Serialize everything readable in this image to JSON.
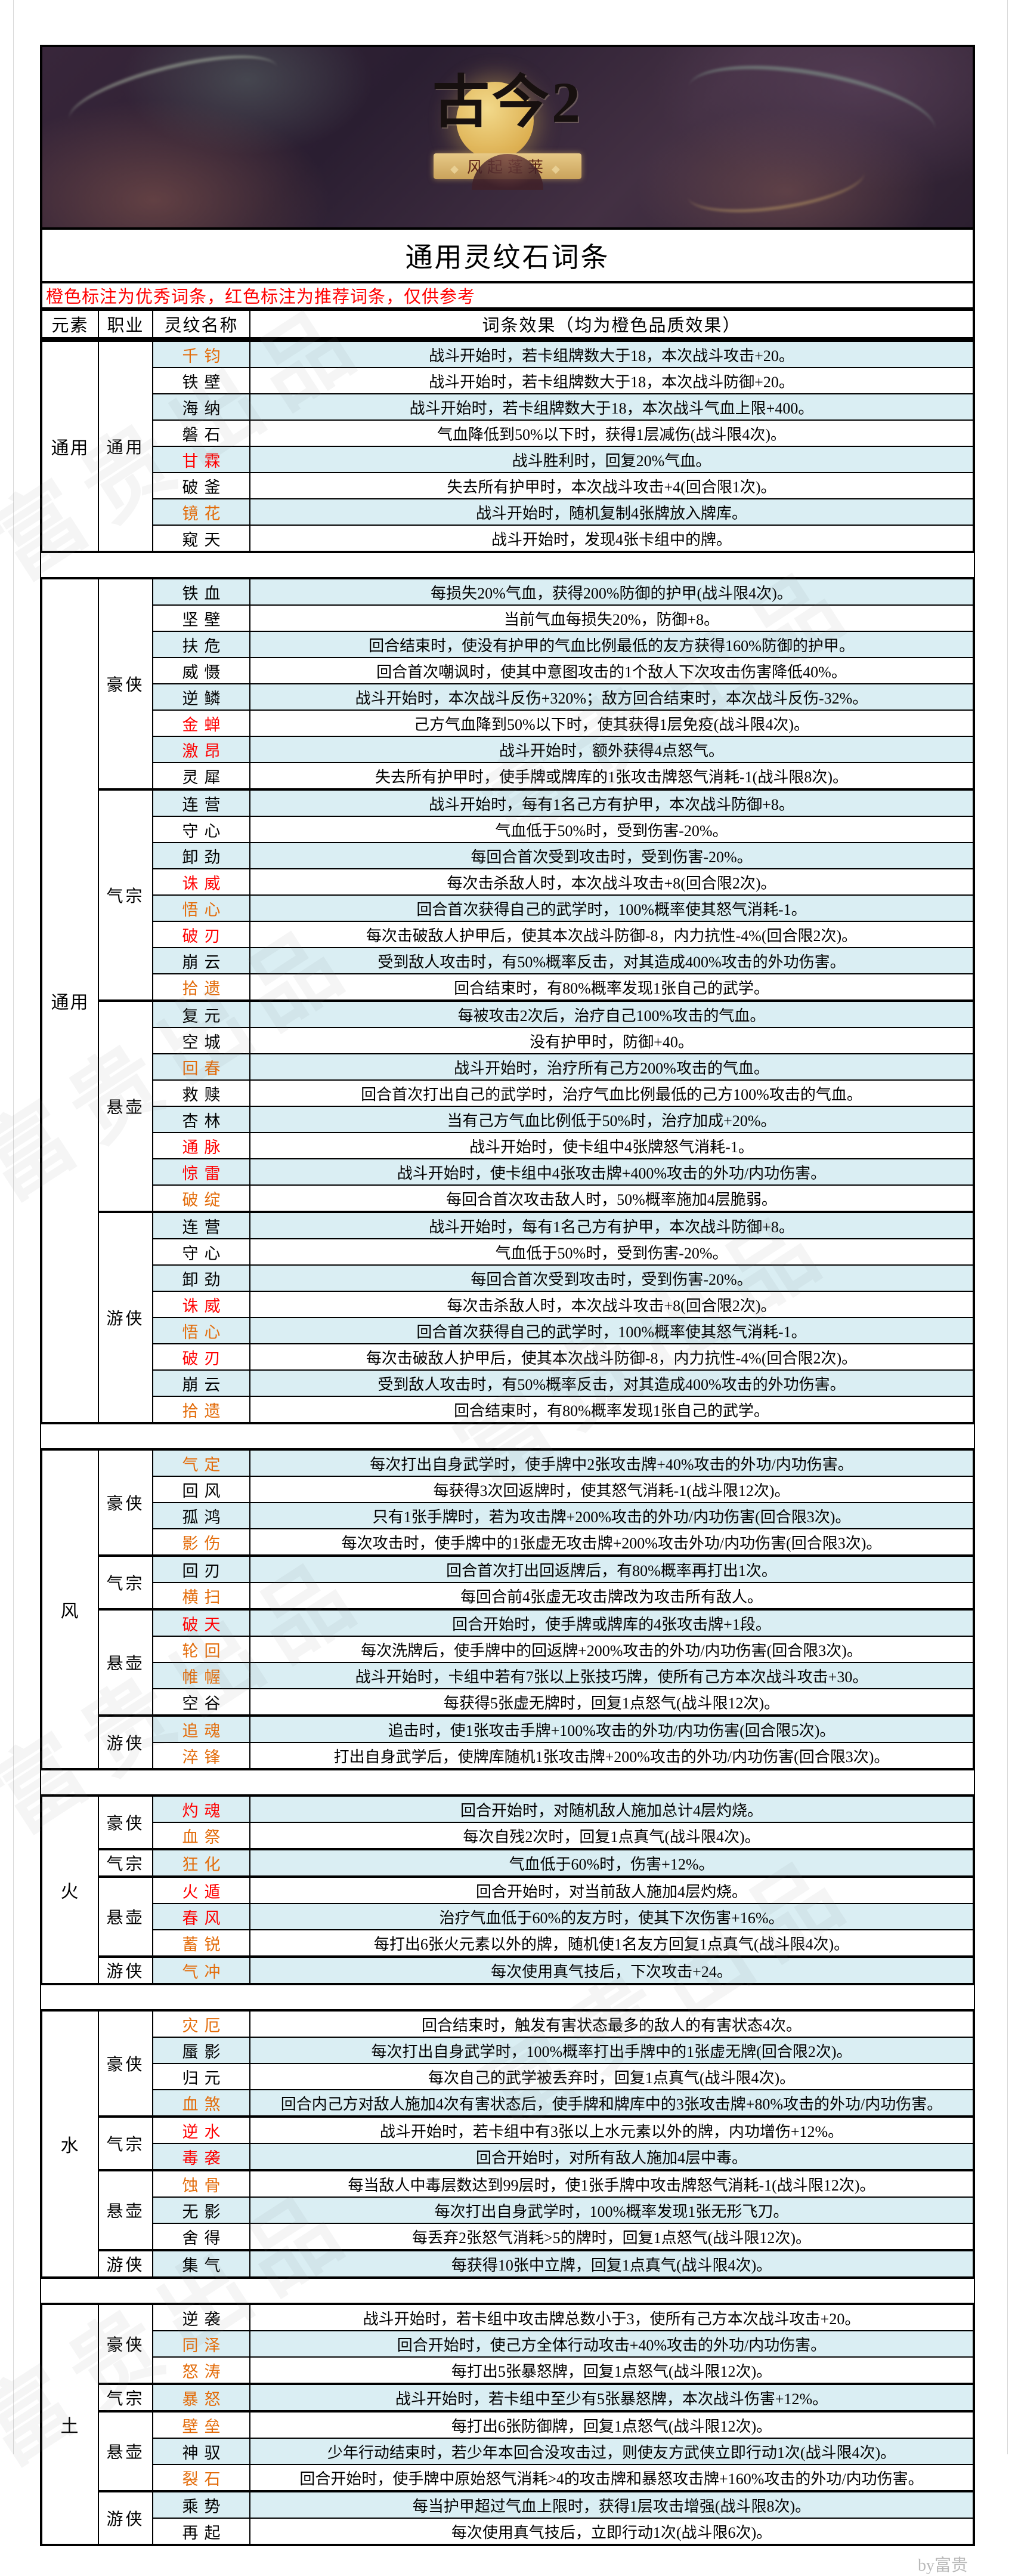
{
  "banner": {
    "logo_main": "古今2",
    "logo_sub": "风起蓬莱"
  },
  "title": "通用灵纹石词条",
  "note": "橙色标注为优秀词条，红色标注为推荐词条，仅供参考",
  "columns": [
    "元素",
    "职业",
    "灵纹名称",
    "词条效果（均为橙色品质效果）"
  ],
  "footer": "by富贵",
  "watermark_text": "富贵出品",
  "colors": {
    "orange": "#E36C0A",
    "red": "#FF0000",
    "row_blue": "#DAEEF3",
    "note_bg": "#FBE5C0"
  },
  "sections": [
    {
      "element": "通用",
      "first_shade": "blue",
      "groups": [
        {
          "cls": "通用",
          "rows": [
            {
              "name": "千钧",
              "color": "orange",
              "effect": "战斗开始时，若卡组牌数大于18，本次战斗攻击+20。"
            },
            {
              "name": "铁壁",
              "color": "black",
              "effect": "战斗开始时，若卡组牌数大于18，本次战斗防御+20。"
            },
            {
              "name": "海纳",
              "color": "black",
              "effect": "战斗开始时，若卡组牌数大于18，本次战斗气血上限+400。"
            },
            {
              "name": "磐石",
              "color": "black",
              "effect": "气血降低到50%以下时，获得1层减伤(战斗限4次)。"
            },
            {
              "name": "甘霖",
              "color": "red",
              "effect": "战斗胜利时，回复20%气血。"
            },
            {
              "name": "破釜",
              "color": "black",
              "effect": "失去所有护甲时，本次战斗攻击+4(回合限1次)。"
            },
            {
              "name": "镜花",
              "color": "orange",
              "effect": "战斗开始时，随机复制4张牌放入牌库。"
            },
            {
              "name": "窥天",
              "color": "black",
              "effect": "战斗开始时，发现4张卡组中的牌。"
            }
          ]
        }
      ]
    },
    {
      "element": "通用",
      "first_shade": "blue",
      "groups": [
        {
          "cls": "豪侠",
          "rows": [
            {
              "name": "铁血",
              "color": "black",
              "effect": "每损失20%气血，获得200%防御的护甲(战斗限4次)。"
            },
            {
              "name": "坚壁",
              "color": "black",
              "effect": "当前气血每损失20%，防御+8。"
            },
            {
              "name": "扶危",
              "color": "black",
              "effect": "回合结束时，使没有护甲的气血比例最低的友方获得160%防御的护甲。"
            },
            {
              "name": "威慑",
              "color": "black",
              "effect": "回合首次嘲讽时，使其中意图攻击的1个敌人下次攻击伤害降低40%。"
            },
            {
              "name": "逆鳞",
              "color": "black",
              "effect": "战斗开始时，本次战斗反伤+320%；敌方回合结束时，本次战斗反伤-32%。"
            },
            {
              "name": "金蝉",
              "color": "red",
              "effect": "己方气血降到50%以下时，使其获得1层免疫(战斗限4次)。"
            },
            {
              "name": "激昂",
              "color": "red",
              "effect": "战斗开始时，额外获得4点怒气。"
            },
            {
              "name": "灵犀",
              "color": "black",
              "effect": "失去所有护甲时，使手牌或牌库的1张攻击牌怒气消耗-1(战斗限8次)。"
            }
          ]
        },
        {
          "cls": "气宗",
          "rows": [
            {
              "name": "连营",
              "color": "black",
              "effect": "战斗开始时，每有1名己方有护甲，本次战斗防御+8。"
            },
            {
              "name": "守心",
              "color": "black",
              "effect": "气血低于50%时，受到伤害-20%。"
            },
            {
              "name": "卸劲",
              "color": "black",
              "effect": "每回合首次受到攻击时，受到伤害-20%。"
            },
            {
              "name": "诛威",
              "color": "red",
              "effect": "每次击杀敌人时，本次战斗攻击+8(回合限2次)。"
            },
            {
              "name": "悟心",
              "color": "orange",
              "effect": "回合首次获得自己的武学时，100%概率使其怒气消耗-1。"
            },
            {
              "name": "破刃",
              "color": "red",
              "effect": "每次击破敌人护甲后，使其本次战斗防御-8，内力抗性-4%(回合限2次)。"
            },
            {
              "name": "崩云",
              "color": "black",
              "effect": "受到敌人攻击时，有50%概率反击，对其造成400%攻击的外功伤害。"
            },
            {
              "name": "拾遗",
              "color": "orange",
              "effect": "回合结束时，有80%概率发现1张自己的武学。"
            }
          ]
        },
        {
          "cls": "悬壶",
          "rows": [
            {
              "name": "复元",
              "color": "black",
              "effect": "每被攻击2次后，治疗自己100%攻击的气血。"
            },
            {
              "name": "空城",
              "color": "black",
              "effect": "没有护甲时，防御+40。"
            },
            {
              "name": "回春",
              "color": "orange",
              "effect": "战斗开始时，治疗所有己方200%攻击的气血。"
            },
            {
              "name": "救赎",
              "color": "black",
              "effect": "回合首次打出自己的武学时，治疗气血比例最低的己方100%攻击的气血。"
            },
            {
              "name": "杏林",
              "color": "black",
              "effect": "当有己方气血比例低于50%时，治疗加成+20%。"
            },
            {
              "name": "通脉",
              "color": "red",
              "effect": "战斗开始时，使卡组中4张牌怒气消耗-1。"
            },
            {
              "name": "惊雷",
              "color": "red",
              "effect": "战斗开始时，使卡组中4张攻击牌+400%攻击的外功/内功伤害。"
            },
            {
              "name": "破绽",
              "color": "orange",
              "effect": "每回合首次攻击敌人时，50%概率施加4层脆弱。"
            }
          ]
        },
        {
          "cls": "游侠",
          "rows": [
            {
              "name": "连营",
              "color": "black",
              "effect": "战斗开始时，每有1名己方有护甲，本次战斗防御+8。"
            },
            {
              "name": "守心",
              "color": "black",
              "effect": "气血低于50%时，受到伤害-20%。"
            },
            {
              "name": "卸劲",
              "color": "black",
              "effect": "每回合首次受到攻击时，受到伤害-20%。"
            },
            {
              "name": "诛威",
              "color": "red",
              "effect": "每次击杀敌人时，本次战斗攻击+8(回合限2次)。"
            },
            {
              "name": "悟心",
              "color": "orange",
              "effect": "回合首次获得自己的武学时，100%概率使其怒气消耗-1。"
            },
            {
              "name": "破刃",
              "color": "red",
              "effect": "每次击破敌人护甲后，使其本次战斗防御-8，内力抗性-4%(回合限2次)。"
            },
            {
              "name": "崩云",
              "color": "black",
              "effect": "受到敌人攻击时，有50%概率反击，对其造成400%攻击的外功伤害。"
            },
            {
              "name": "拾遗",
              "color": "orange",
              "effect": "回合结束时，有80%概率发现1张自己的武学。"
            }
          ]
        }
      ]
    },
    {
      "element": "风",
      "first_shade": "blue",
      "groups": [
        {
          "cls": "豪侠",
          "rows": [
            {
              "name": "气定",
              "color": "orange",
              "effect": "每次打出自身武学时，使手牌中2张攻击牌+40%攻击的外功/内功伤害。"
            },
            {
              "name": "回风",
              "color": "black",
              "effect": "每获得3次回返牌时，使其怒气消耗-1(战斗限12次)。"
            },
            {
              "name": "孤鸿",
              "color": "black",
              "effect": "只有1张手牌时，若为攻击牌+200%攻击的外功/内功伤害(回合限3次)。"
            },
            {
              "name": "影伤",
              "color": "orange",
              "effect": "每次攻击时，使手牌中的1张虚无攻击牌+200%攻击外功/内功伤害(回合限3次)。"
            }
          ]
        },
        {
          "cls": "气宗",
          "rows": [
            {
              "name": "回刃",
              "color": "black",
              "effect": "回合首次打出回返牌后，有80%概率再打出1次。"
            },
            {
              "name": "横扫",
              "color": "orange",
              "effect": "每回合前4张虚无攻击牌改为攻击所有敌人。"
            }
          ]
        },
        {
          "cls": "悬壶",
          "rows": [
            {
              "name": "破天",
              "color": "red",
              "effect": "回合开始时，使手牌或牌库的4张攻击牌+1段。"
            },
            {
              "name": "轮回",
              "color": "orange",
              "effect": "每次洗牌后，使手牌中的回返牌+200%攻击的外功/内功伤害(回合限3次)。"
            },
            {
              "name": "帷幄",
              "color": "orange",
              "effect": "战斗开始时，卡组中若有7张以上张技巧牌，使所有己方本次战斗攻击+30。"
            },
            {
              "name": "空谷",
              "color": "black",
              "effect": "每获得5张虚无牌时，回复1点怒气(战斗限12次)。"
            }
          ]
        },
        {
          "cls": "游侠",
          "rows": [
            {
              "name": "追魂",
              "color": "orange",
              "effect": "追击时，使1张攻击手牌+100%攻击的外功/内功伤害(回合限5次)。"
            },
            {
              "name": "淬锋",
              "color": "orange",
              "effect": "打出自身武学后，使牌库随机1张攻击牌+200%攻击的外功/内功伤害(回合限3次)。"
            }
          ]
        }
      ]
    },
    {
      "element": "火",
      "first_shade": "blue",
      "groups": [
        {
          "cls": "豪侠",
          "rows": [
            {
              "name": "灼魂",
              "color": "red",
              "effect": "回合开始时，对随机敌人施加总计4层灼烧。"
            },
            {
              "name": "血祭",
              "color": "orange",
              "effect": "每次自残2次时，回复1点真气(战斗限4次)。"
            }
          ]
        },
        {
          "cls": "气宗",
          "rows": [
            {
              "name": "狂化",
              "color": "orange",
              "effect": "气血低于60%时，伤害+12%。"
            }
          ]
        },
        {
          "cls": "悬壶",
          "rows": [
            {
              "name": "火遁",
              "color": "red",
              "effect": "回合开始时，对当前敌人施加4层灼烧。"
            },
            {
              "name": "春风",
              "color": "red",
              "effect": "治疗气血低于60%的友方时，使其下次伤害+16%。"
            },
            {
              "name": "蓄锐",
              "color": "orange",
              "effect": "每打出6张火元素以外的牌，随机使1名友方回复1点真气(战斗限4次)。"
            }
          ]
        },
        {
          "cls": "游侠",
          "rows": [
            {
              "name": "气冲",
              "color": "orange",
              "effect": "每次使用真气技后，下次攻击+24。"
            }
          ]
        }
      ]
    },
    {
      "element": "水",
      "first_shade": "white",
      "groups": [
        {
          "cls": "豪侠",
          "rows": [
            {
              "name": "灾厄",
              "color": "orange",
              "effect": "回合结束时，触发有害状态最多的敌人的有害状态4次。"
            },
            {
              "name": "蜃影",
              "color": "black",
              "effect": "每次打出自身武学时，100%概率打出手牌中的1张虚无牌(回合限2次)。"
            },
            {
              "name": "归元",
              "color": "black",
              "effect": "每次自己的武学被丢弃时，回复1点真气(战斗限4次)。"
            },
            {
              "name": "血煞",
              "color": "orange",
              "effect": "回合内己方对敌人施加4次有害状态后，使手牌和牌库中的3张攻击牌+80%攻击的外功/内功伤害。"
            }
          ]
        },
        {
          "cls": "气宗",
          "rows": [
            {
              "name": "逆水",
              "color": "red",
              "effect": "战斗开始时，若卡组中有3张以上水元素以外的牌，内功增伤+12%。"
            },
            {
              "name": "毒袭",
              "color": "red",
              "effect": "回合开始时，对所有敌人施加4层中毒。"
            }
          ]
        },
        {
          "cls": "悬壶",
          "rows": [
            {
              "name": "蚀骨",
              "color": "orange",
              "effect": "每当敌人中毒层数达到99层时，使1张手牌中攻击牌怒气消耗-1(战斗限12次)。"
            },
            {
              "name": "无影",
              "color": "black",
              "effect": "每次打出自身武学时，100%概率发现1张无形飞刀。"
            },
            {
              "name": "舍得",
              "color": "black",
              "effect": "每丢弃2张怒气消耗>5的牌时，回复1点怒气(战斗限12次)。"
            }
          ]
        },
        {
          "cls": "游侠",
          "rows": [
            {
              "name": "集气",
              "color": "black",
              "effect": "每获得10张中立牌，回复1点真气(战斗限4次)。"
            }
          ]
        }
      ]
    },
    {
      "element": "土",
      "first_shade": "white",
      "groups": [
        {
          "cls": "豪侠",
          "rows": [
            {
              "name": "逆袭",
              "color": "black",
              "effect": "战斗开始时，若卡组中攻击牌总数小于3，使所有己方本次战斗攻击+20。"
            },
            {
              "name": "同泽",
              "color": "orange",
              "effect": "回合开始时，使己方全体行动攻击+40%攻击的外功/内功伤害。"
            },
            {
              "name": "怒涛",
              "color": "orange",
              "effect": "每打出5张暴怒牌，回复1点怒气(战斗限12次)。"
            }
          ]
        },
        {
          "cls": "气宗",
          "rows": [
            {
              "name": "暴怒",
              "color": "orange",
              "effect": "战斗开始时，若卡组中至少有5张暴怒牌，本次战斗伤害+12%。"
            }
          ]
        },
        {
          "cls": "悬壶",
          "rows": [
            {
              "name": "壁垒",
              "color": "orange",
              "effect": "每打出6张防御牌，回复1点怒气(战斗限12次)。"
            },
            {
              "name": "神驭",
              "color": "black",
              "effect": "少年行动结束时，若少年本回合没攻击过，则使友方武侠立即行动1次(战斗限4次)。"
            },
            {
              "name": "裂石",
              "color": "orange",
              "effect": "回合开始时，使手牌中原始怒气消耗>4的攻击牌和暴怒攻击牌+160%攻击的外功/内功伤害。"
            }
          ]
        },
        {
          "cls": "游侠",
          "rows": [
            {
              "name": "乘势",
              "color": "black",
              "effect": "每当护甲超过气血上限时，获得1层攻击增强(战斗限8次)。"
            },
            {
              "name": "再起",
              "color": "black",
              "effect": "每次使用真气技后，立即行动1次(战斗限6次)。"
            }
          ]
        }
      ]
    }
  ]
}
